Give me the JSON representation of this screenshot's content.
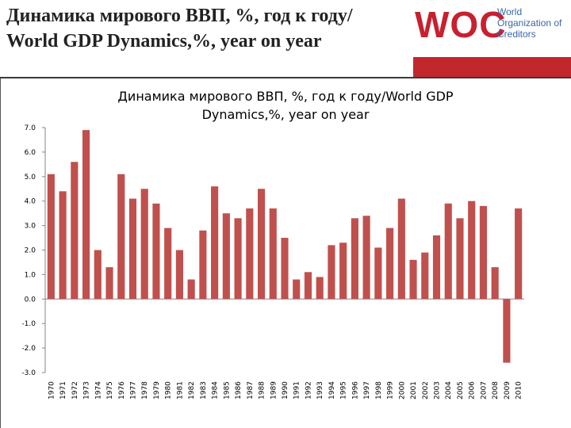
{
  "slide": {
    "title_line1": "Динамика мирового ВВП, %, год к году/",
    "title_line2": "World GDP Dynamics,%, year on year"
  },
  "logo": {
    "mark": "WOC",
    "line1": "World",
    "line2": "Organization of",
    "line3": "Creditors",
    "mark_color": "#c8202f",
    "text_color": "#3b66a8",
    "bar_color": "#c1272d"
  },
  "chart_data": {
    "type": "bar",
    "title": "Динамика мирового ВВП, %, год к году/World GDP Dynamics,%, year on year",
    "title_line1": "Динамика мирового ВВП, %, год к году/World GDP",
    "title_line2": "Dynamics,%, year on year",
    "xlabel": "",
    "ylabel": "",
    "ylim": [
      -3,
      7
    ],
    "yticks": [
      "-3.0",
      "-2.0",
      "-1.0",
      "0.0",
      "1.0",
      "2.0",
      "3.0",
      "4.0",
      "5.0",
      "6.0",
      "7.0"
    ],
    "grid": false,
    "legend": "none",
    "bar_color": "#c0504d",
    "categories": [
      "1970",
      "1971",
      "1972",
      "1973",
      "1974",
      "1975",
      "1976",
      "1977",
      "1978",
      "1979",
      "1980",
      "1981",
      "1982",
      "1983",
      "1984",
      "1985",
      "1986",
      "1987",
      "1988",
      "1989",
      "1990",
      "1991",
      "1992",
      "1993",
      "1994",
      "1995",
      "1996",
      "1997",
      "1998",
      "1999",
      "2000",
      "2001",
      "2002",
      "2003",
      "2004",
      "2005",
      "2006",
      "2007",
      "2008",
      "2009",
      "2010"
    ],
    "values": [
      5.1,
      4.4,
      5.6,
      6.9,
      2.0,
      1.3,
      5.1,
      4.1,
      4.5,
      3.9,
      2.9,
      2.0,
      0.8,
      2.8,
      4.6,
      3.5,
      3.3,
      3.7,
      4.5,
      3.7,
      2.5,
      0.8,
      1.1,
      0.9,
      2.2,
      2.3,
      3.3,
      3.4,
      2.1,
      2.9,
      4.1,
      1.6,
      1.9,
      2.6,
      3.9,
      3.3,
      4.0,
      3.8,
      1.3,
      -2.6,
      3.7
    ]
  }
}
